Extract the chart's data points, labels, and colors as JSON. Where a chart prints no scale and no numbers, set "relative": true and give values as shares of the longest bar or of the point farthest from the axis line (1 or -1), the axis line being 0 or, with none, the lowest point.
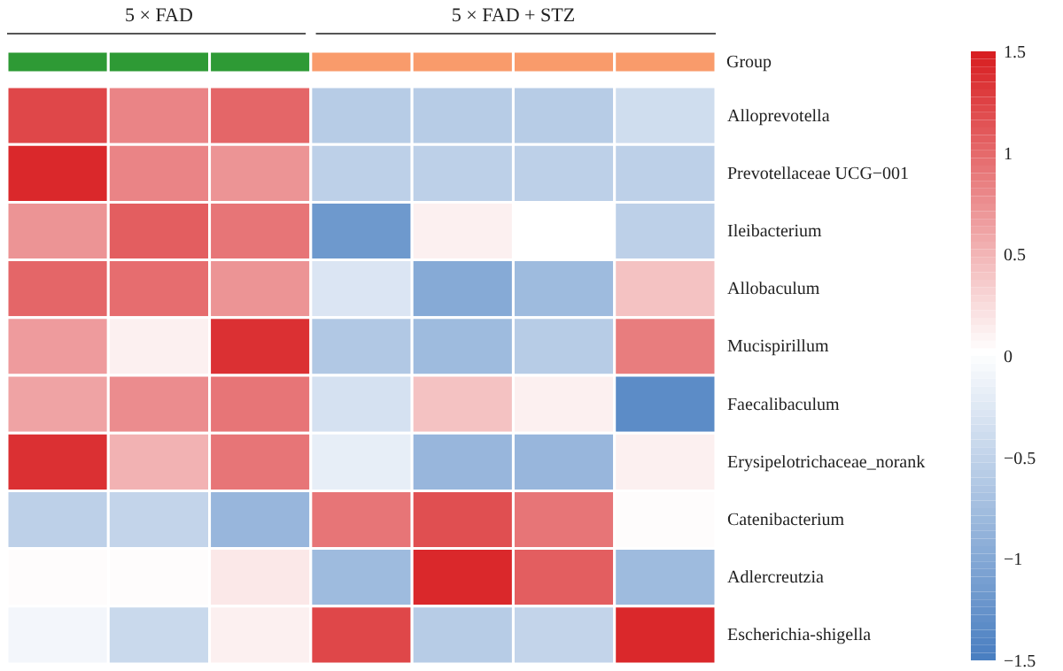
{
  "chart_data": [
    {
      "type": "bar",
      "relative": true,
      "stacked": true,
      "ylabel": "Group",
      "categories": [
        null,
        null,
        null,
        null,
        null,
        null,
        null
      ],
      "series": [
        {
          "name": "5 × FAD",
          "color": "#2e9a35",
          "values": [
            1,
            1,
            1,
            null,
            null,
            null,
            null
          ]
        },
        {
          "name": "5 × FAD + STZ",
          "color": "#f99b6b",
          "values": [
            null,
            null,
            null,
            1,
            1,
            1,
            1
          ]
        }
      ]
    },
    {
      "type": "heatmap",
      "categories": [
        null,
        null,
        null,
        null,
        null,
        null,
        null
      ],
      "y_categories": [
        "Alloprevotella",
        "Prevotellaceae UCG−001",
        "Ileibacterium",
        "Allobaculum",
        "Mucispirillum",
        "Faecalibaculum",
        "Erysipelotrichaceae_norank",
        "Catenibacterium",
        "Adlercreutzia",
        "Escherichia-shigella"
      ],
      "cells": [
        [
          1.2,
          0.8,
          1.0,
          -0.6,
          -0.6,
          -0.6,
          -0.4
        ],
        [
          1.4,
          0.8,
          0.7,
          -0.55,
          -0.55,
          -0.55,
          -0.55
        ],
        [
          0.7,
          1.05,
          0.9,
          -1.2,
          0.1,
          0,
          -0.55
        ],
        [
          1.0,
          0.95,
          0.7,
          -0.3,
          -1.0,
          -0.8,
          0.4
        ],
        [
          0.65,
          0.1,
          1.35,
          -0.65,
          -0.8,
          -0.6,
          0.85
        ],
        [
          0.6,
          0.75,
          0.9,
          -0.35,
          0.4,
          0.1,
          -1.35
        ],
        [
          1.35,
          0.5,
          0.9,
          -0.2,
          -0.85,
          -0.85,
          0.1
        ],
        [
          -0.55,
          -0.5,
          -0.85,
          0.9,
          1.15,
          0.9,
          0.02
        ],
        [
          0.02,
          0.02,
          0.15,
          -0.8,
          1.4,
          1.05,
          -0.8
        ],
        [
          -0.1,
          -0.45,
          0.1,
          1.2,
          -0.6,
          -0.5,
          1.4
        ]
      ],
      "clim": [
        -1.5,
        1.5
      ],
      "cticks": [
        1.5,
        1,
        0.5,
        0,
        -0.5,
        -1,
        -1.5
      ],
      "colors": [
        "#4a7fc1",
        "#ffffff",
        "#d7191c"
      ]
    }
  ]
}
